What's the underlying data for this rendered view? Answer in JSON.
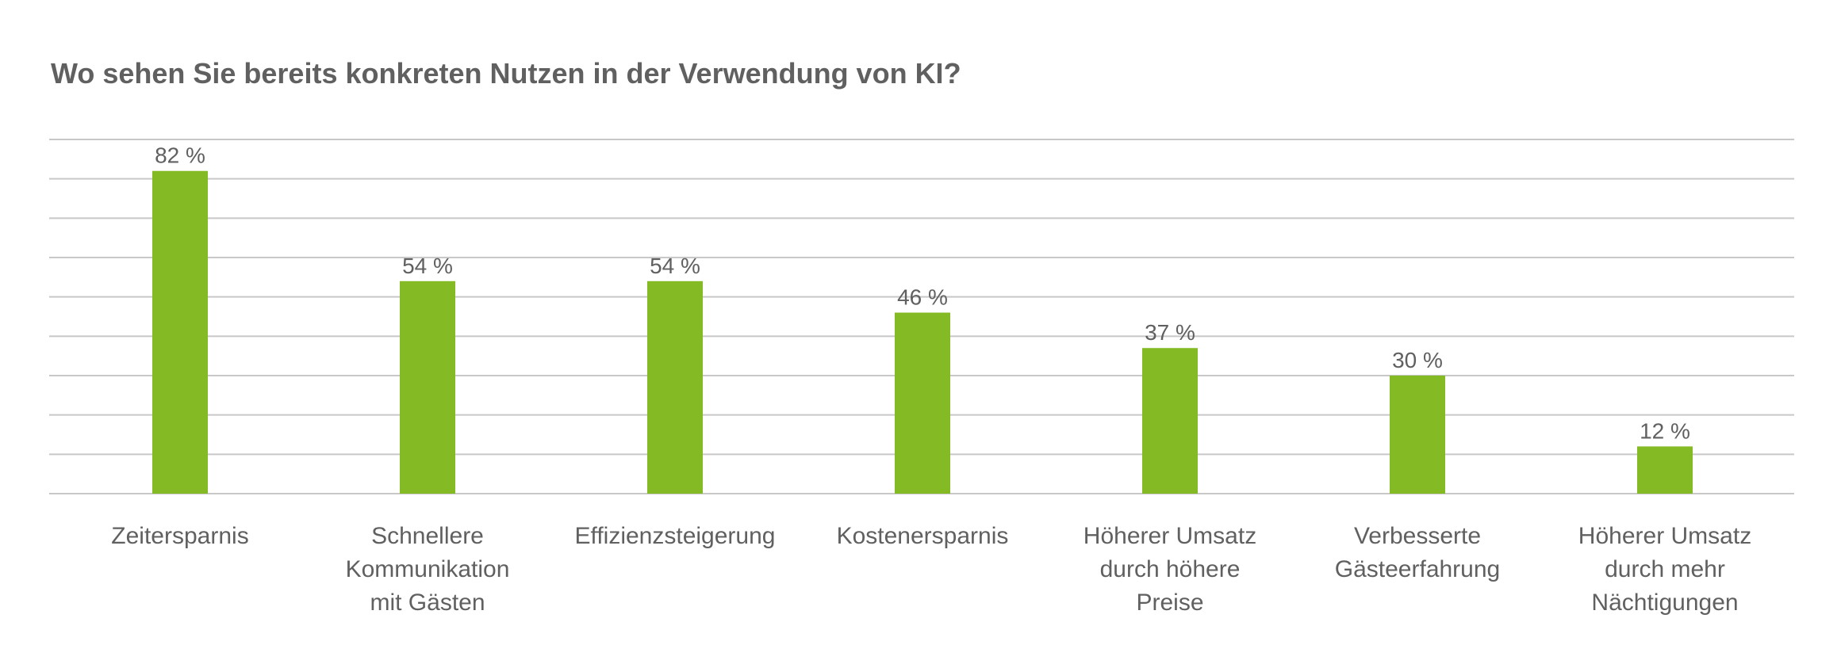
{
  "chart_data": {
    "type": "bar",
    "title": "Wo sehen Sie bereits konkreten Nutzen in der Verwendung von KI?",
    "categories": [
      [
        "Zeitersparnis"
      ],
      [
        "Schnellere",
        "Kommunikation",
        "mit Gästen"
      ],
      [
        "Effizienzsteigerung"
      ],
      [
        "Kostenersparnis"
      ],
      [
        "Höherer Umsatz",
        "durch höhere",
        "Preise"
      ],
      [
        "Verbesserte",
        "Gästeerfahrung"
      ],
      [
        "Höherer Umsatz",
        "durch mehr",
        "Nächtigungen"
      ]
    ],
    "values": [
      82,
      54,
      54,
      46,
      37,
      30,
      12
    ],
    "value_labels": [
      "82 %",
      "54 %",
      "54 %",
      "46 %",
      "37 %",
      "30 %",
      "12 %"
    ],
    "unit": "%",
    "ylim": [
      0,
      90
    ],
    "gridlines": 10,
    "xlabel": "",
    "ylabel": "",
    "colors": {
      "bar": "#84bb25",
      "text": "#606060",
      "grid": "#c8c8c8"
    }
  }
}
